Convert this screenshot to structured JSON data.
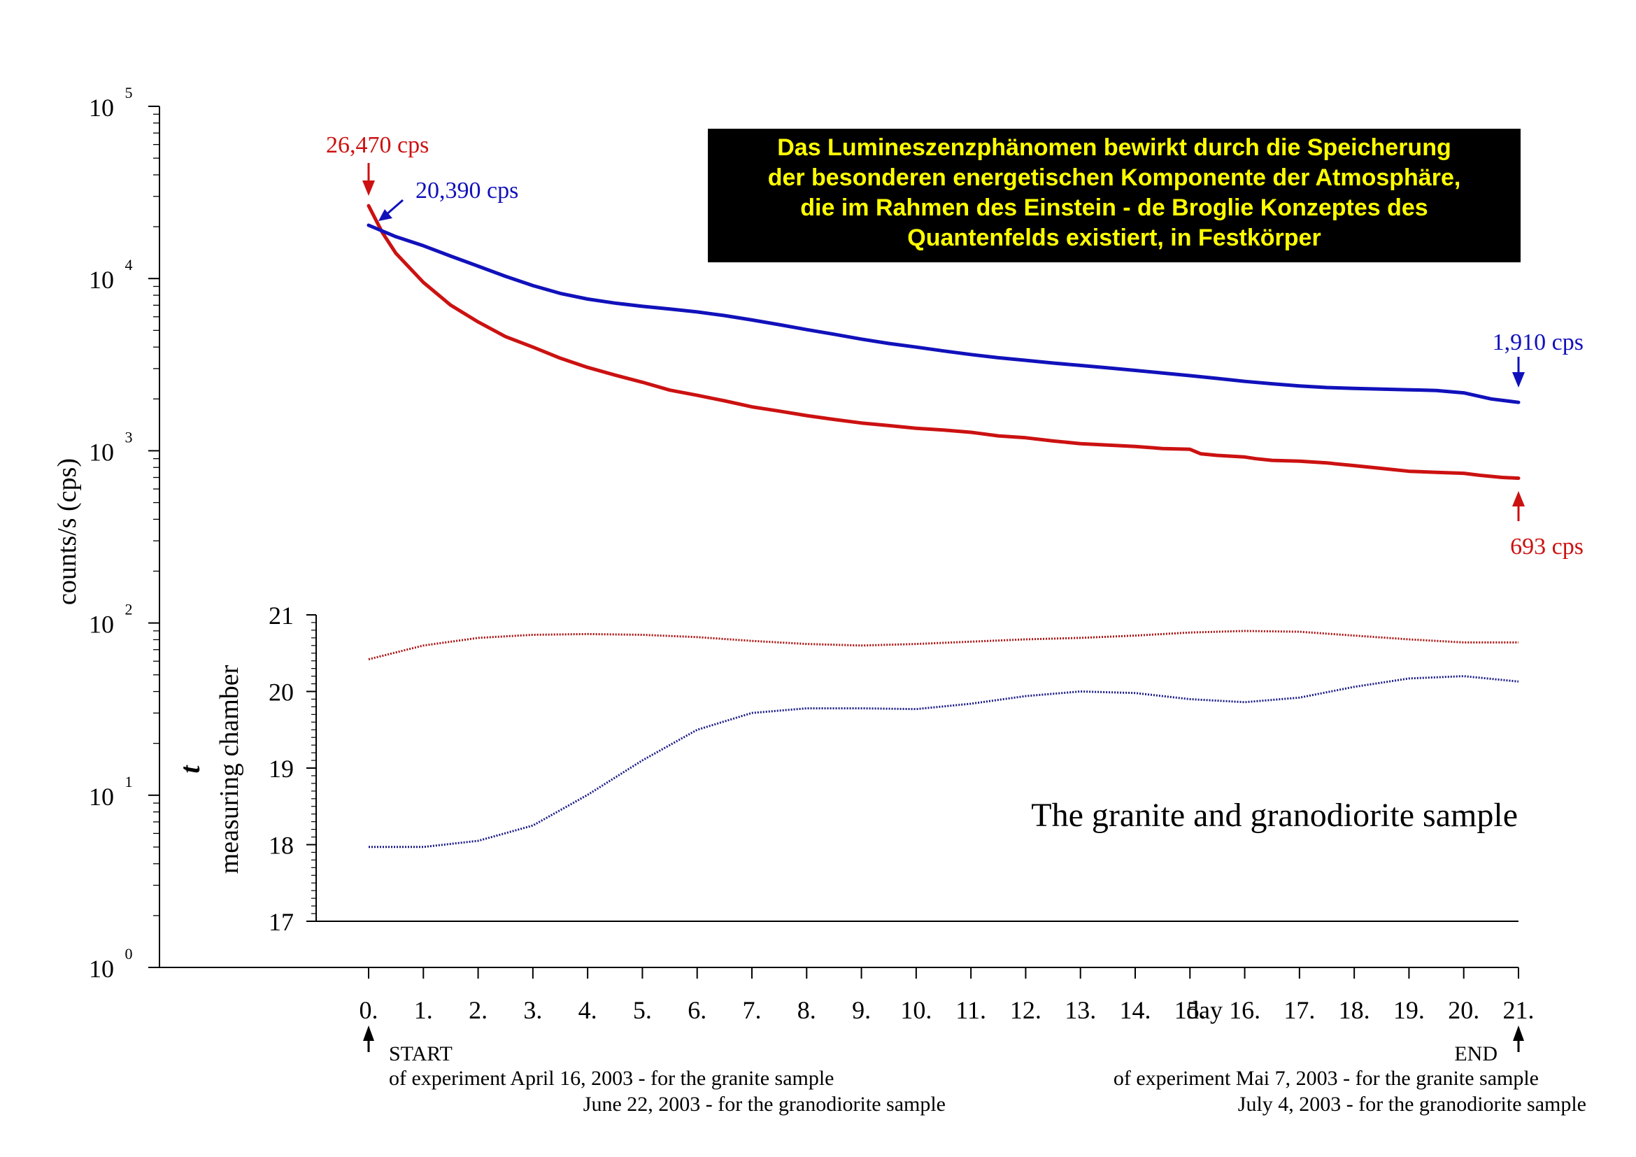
{
  "chart_data": {
    "type": "line",
    "main": {
      "y_axis": {
        "label": "counts/s (cps)",
        "scale": "log",
        "ylim": [
          1,
          100000
        ],
        "tick_bases": [
          "10",
          "10",
          "10",
          "10",
          "10",
          "10"
        ],
        "tick_exponents": [
          "0",
          "1",
          "2",
          "3",
          "4",
          "5"
        ]
      },
      "x_axis": {
        "label": "day",
        "xlim": [
          0,
          21
        ],
        "tick_labels": [
          "0.",
          "1.",
          "2.",
          "3.",
          "4.",
          "5.",
          "6.",
          "7.",
          "8.",
          "9.",
          "10.",
          "11.",
          "12.",
          "13.",
          "14.",
          "15.",
          "16.",
          "17.",
          "18.",
          "19.",
          "20.",
          "21."
        ]
      },
      "series": [
        {
          "color": "#cc1111",
          "x": [
            0,
            0.25,
            0.5,
            1,
            1.5,
            2,
            2.5,
            3,
            3.5,
            4,
            4.5,
            5,
            5.5,
            6,
            6.5,
            7,
            7.5,
            8,
            8.5,
            9,
            9.5,
            10,
            10.5,
            11,
            11.5,
            12,
            12.5,
            13,
            13.5,
            14,
            14.5,
            15,
            15.2,
            15.5,
            16,
            16.2,
            16.5,
            17,
            17.5,
            18,
            18.5,
            19,
            19.5,
            20,
            20.3,
            20.7,
            21
          ],
          "y": [
            26470,
            18500,
            14000,
            9500,
            7000,
            5600,
            4600,
            4000,
            3450,
            3050,
            2750,
            2500,
            2250,
            2100,
            1950,
            1800,
            1700,
            1600,
            1520,
            1450,
            1400,
            1350,
            1320,
            1280,
            1220,
            1190,
            1140,
            1100,
            1080,
            1060,
            1030,
            1020,
            960,
            940,
            920,
            900,
            880,
            870,
            850,
            820,
            790,
            760,
            750,
            740,
            720,
            700,
            693
          ]
        },
        {
          "color": "#1111bb",
          "x": [
            0,
            0.5,
            1,
            1.5,
            2,
            2.5,
            3,
            3.5,
            4,
            4.5,
            5,
            5.5,
            6,
            6.5,
            7,
            7.5,
            8,
            8.5,
            9,
            9.5,
            10,
            10.5,
            11,
            11.5,
            12,
            12.5,
            13,
            13.5,
            14,
            14.5,
            15,
            15.5,
            16,
            16.5,
            17,
            17.5,
            18,
            18.5,
            19,
            19.5,
            20,
            20.5,
            21
          ],
          "y": [
            20390,
            17500,
            15500,
            13500,
            11800,
            10300,
            9100,
            8200,
            7600,
            7200,
            6900,
            6650,
            6400,
            6100,
            5750,
            5400,
            5050,
            4750,
            4450,
            4200,
            4000,
            3800,
            3620,
            3470,
            3350,
            3230,
            3130,
            3030,
            2930,
            2830,
            2730,
            2630,
            2530,
            2450,
            2380,
            2330,
            2300,
            2280,
            2260,
            2240,
            2170,
            2000,
            1910
          ]
        }
      ],
      "annotations": [
        {
          "text": "26,470 cps",
          "color": "#cc1111"
        },
        {
          "text": "20,390 cps",
          "color": "#1111bb"
        },
        {
          "text": "1,910 cps",
          "color": "#1111bb"
        },
        {
          "text": "693 cps",
          "color": "#cc1111"
        }
      ]
    },
    "inset": {
      "y_axis": {
        "label_symbol": "t",
        "label": "measuring chamber",
        "ylim": [
          17,
          21
        ],
        "tick_labels": [
          "17",
          "18",
          "19",
          "20",
          "21"
        ]
      },
      "series": [
        {
          "color": "#aa1111",
          "x": [
            0,
            1,
            2,
            3,
            4,
            5,
            6,
            7,
            8,
            9,
            10,
            11,
            12,
            13,
            14,
            15,
            16,
            17,
            18,
            19,
            20,
            21
          ],
          "y": [
            20.42,
            20.6,
            20.7,
            20.74,
            20.75,
            20.74,
            20.71,
            20.66,
            20.62,
            20.6,
            20.62,
            20.65,
            20.68,
            20.7,
            20.73,
            20.77,
            20.79,
            20.78,
            20.73,
            20.68,
            20.64,
            20.64
          ]
        },
        {
          "color": "#1a1a88",
          "x": [
            0,
            1,
            2,
            3,
            4,
            5,
            6,
            7,
            8,
            9,
            10,
            11,
            12,
            13,
            14,
            15,
            16,
            17,
            18,
            19,
            20,
            21
          ],
          "y": [
            17.97,
            17.97,
            18.05,
            18.25,
            18.65,
            19.1,
            19.5,
            19.72,
            19.78,
            19.78,
            19.77,
            19.84,
            19.94,
            20.0,
            19.98,
            19.9,
            19.86,
            19.92,
            20.06,
            20.17,
            20.2,
            20.13
          ]
        }
      ],
      "caption": "The granite and granodiorite sample"
    },
    "banner": {
      "lines": [
        "Das Lumineszenzphänomen bewirkt durch die Speicherung",
        "der besonderen energetischen Komponente der Atmosphäre,",
        "die im Rahmen des Einstein - de Broglie Konzeptes des",
        "Quantenfelds existiert, in Festkörper"
      ],
      "background": "#000000",
      "text_color": "#ffff00"
    },
    "footnotes": {
      "start_title": "START",
      "start_line1": "of experiment April 16, 2003  - for the granite sample",
      "start_line2": "June 22, 2003  - for the granodiorite sample",
      "end_title": "END",
      "end_line1": "of experiment Mai 7, 2003  -  for the granite sample",
      "end_line2": "July 4, 2003  - for the granodiorite sample"
    }
  }
}
